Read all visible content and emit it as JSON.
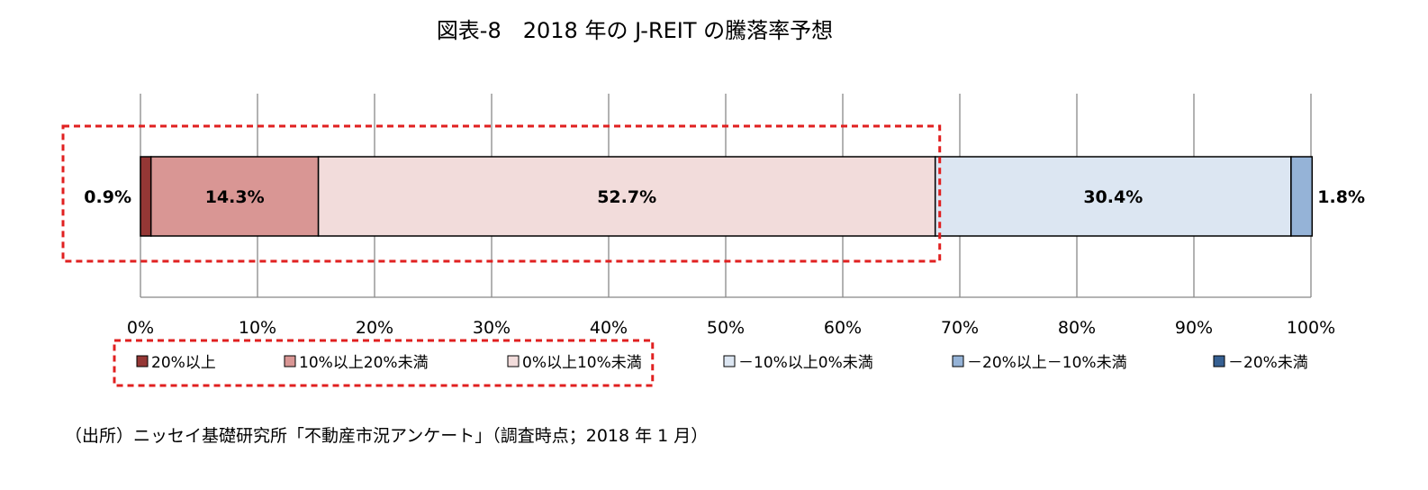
{
  "chart_data": {
    "type": "bar",
    "orientation": "horizontal",
    "stacked": true,
    "title": "図表-8　2018 年の J-REIT の騰落率予想",
    "xlim": [
      0,
      100
    ],
    "x_ticks": [
      "0%",
      "10%",
      "20%",
      "30%",
      "40%",
      "50%",
      "60%",
      "70%",
      "80%",
      "90%",
      "100%"
    ],
    "grid": "vertical",
    "legend_position": "bottom",
    "series": [
      {
        "name": "20%以上",
        "value": 0.9,
        "label": "0.9%",
        "color": "#953735"
      },
      {
        "name": "10%以上20%未満",
        "value": 14.3,
        "label": "14.3%",
        "color": "#d99694"
      },
      {
        "name": "0%以上10%未満",
        "value": 52.7,
        "label": "52.7%",
        "color": "#f2dcdb"
      },
      {
        "name": "－10%以上0%未満",
        "value": 30.4,
        "label": "30.4%",
        "color": "#dce6f2"
      },
      {
        "name": "－20%以上－10%未満",
        "value": 1.8,
        "label": "1.8%",
        "color": "#95b3d7"
      },
      {
        "name": "－20%未満",
        "value": 0.0,
        "label": "",
        "color": "#366092"
      }
    ],
    "highlight_color": "#e02020"
  },
  "source": "（出所）ニッセイ基礎研究所「不動産市況アンケート」（調査時点；2018 年 1 月）"
}
